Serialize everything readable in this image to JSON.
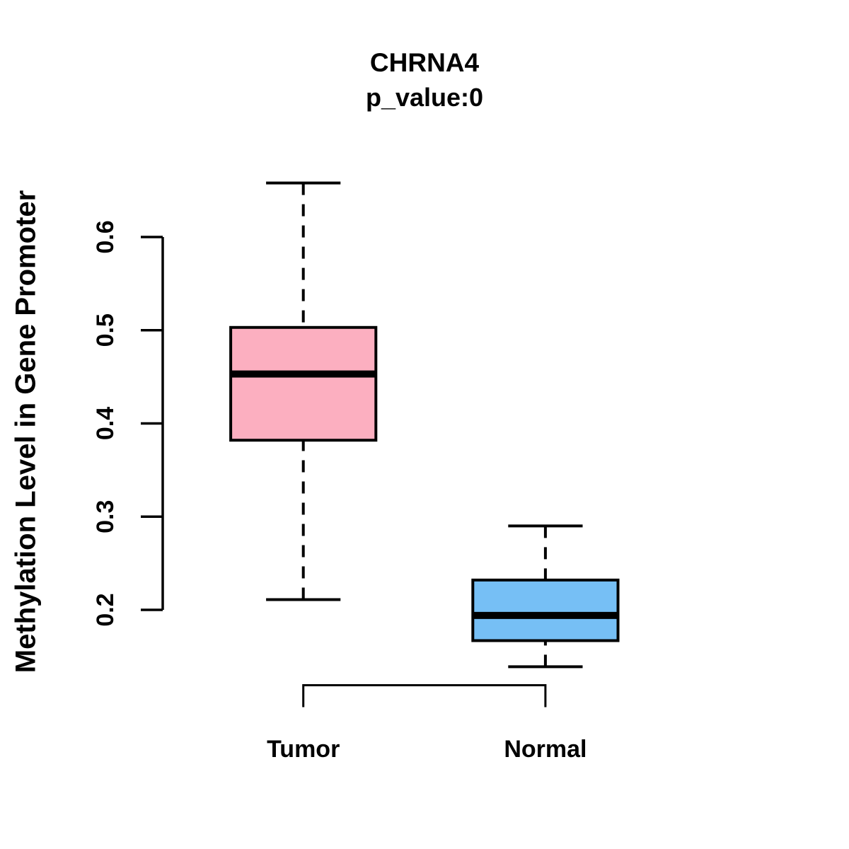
{
  "chart_data": {
    "type": "boxplot",
    "title": "CHRNA4",
    "subtitle": "p_value:0",
    "ylabel": "Methylation Level in Gene Promoter",
    "xlabel": "",
    "categories": [
      "Tumor",
      "Normal"
    ],
    "series": [
      {
        "name": "Tumor",
        "fill_color": "#FCAFC0",
        "whisker_low": 0.211,
        "q1": 0.382,
        "median": 0.453,
        "q3": 0.503,
        "whisker_high": 0.658
      },
      {
        "name": "Normal",
        "fill_color": "#76BFF5",
        "whisker_low": 0.139,
        "q1": 0.167,
        "median": 0.194,
        "q3": 0.232,
        "whisker_high": 0.29
      }
    ],
    "yticks": [
      0.2,
      0.3,
      0.4,
      0.5,
      0.6
    ],
    "ytick_labels": [
      "0.2",
      "0.3",
      "0.4",
      "0.5",
      "0.6"
    ],
    "ylim": [
      0.13,
      0.67
    ],
    "grid": false,
    "legend": null,
    "whisker_style": "dashed",
    "comparison_bracket": {
      "from": "Tumor",
      "to": "Normal",
      "label": ""
    },
    "stroke_color": "#000000",
    "background": "#FFFFFF"
  }
}
